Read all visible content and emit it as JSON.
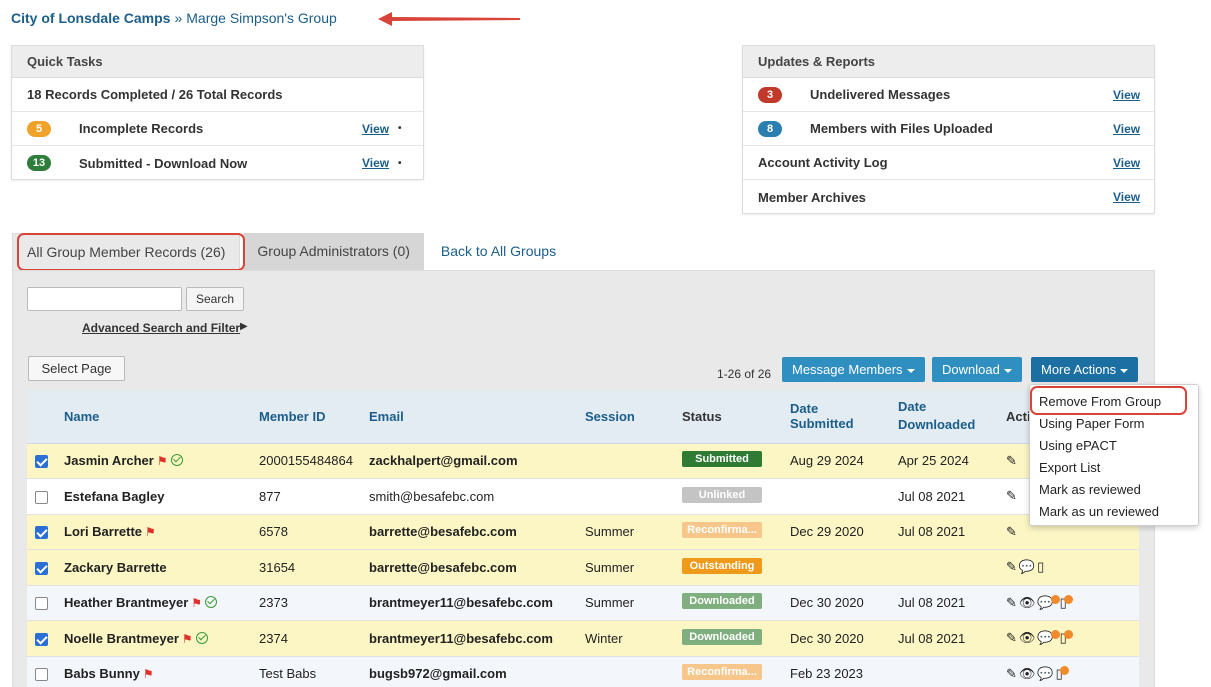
{
  "breadcrumb": {
    "org": "City of Lonsdale Camps",
    "sep": "»",
    "group": "Marge Simpson's Group"
  },
  "quick_tasks": {
    "title": "Quick Tasks",
    "summary": "18 Records Completed / 26 Total Records",
    "rows": [
      {
        "badge": "5",
        "label": "Incomplete Records",
        "link": "View"
      },
      {
        "badge": "13",
        "label": "Submitted - Download Now",
        "link": "View"
      }
    ]
  },
  "updates": {
    "title": "Updates & Reports",
    "rows": [
      {
        "badge": "3",
        "label": "Undelivered Messages",
        "link": "View"
      },
      {
        "badge": "8",
        "label": "Members with Files Uploaded",
        "link": "View"
      },
      {
        "badge": "",
        "label": "Account Activity Log",
        "link": "View"
      },
      {
        "badge": "",
        "label": "Member Archives",
        "link": "View"
      }
    ]
  },
  "tabs": {
    "members": "All Group Member Records (26)",
    "admins": "Group Administrators (0)",
    "back": "Back to All Groups"
  },
  "search": {
    "button": "Search",
    "advanced": "Advanced Search and Filter",
    "advanced_arrow": "▶"
  },
  "toolbar": {
    "select_page": "Select Page",
    "count": "1-26 of 26",
    "message": "Message Members",
    "download": "Download",
    "more": "More Actions"
  },
  "table": {
    "headers": {
      "name": "Name",
      "member_id": "Member ID",
      "email": "Email",
      "session": "Session",
      "status": "Status",
      "date_submitted": "Date Submitted",
      "date_downloaded": "Date Downloaded",
      "actions": "Actio"
    },
    "rows": [
      {
        "name": "Jasmin Archer",
        "id": "2000155484864",
        "email": "zackhalpert@gmail.com",
        "session": "",
        "status": "Submitted",
        "submitted": "Aug 29 2024",
        "downloaded": "Apr 25 2024"
      },
      {
        "name": "Estefana Bagley",
        "id": "877",
        "email": "smith@besafebc.com",
        "session": "",
        "status": "Unlinked",
        "submitted": "",
        "downloaded": "Jul 08 2021"
      },
      {
        "name": "Lori Barrette",
        "id": "6578",
        "email": "barrette@besafebc.com",
        "session": "Summer",
        "status": "Reconfirma...",
        "submitted": "Dec 29 2020",
        "downloaded": "Jul 08 2021"
      },
      {
        "name": "Zackary Barrette",
        "id": "31654",
        "email": "barrette@besafebc.com",
        "session": "Summer",
        "status": "Outstanding",
        "submitted": "",
        "downloaded": ""
      },
      {
        "name": "Heather Brantmeyer",
        "id": "2373",
        "email": "brantmeyer11@besafebc.com",
        "session": "Summer",
        "status": "Downloaded",
        "submitted": "Dec 30 2020",
        "downloaded": "Jul 08 2021"
      },
      {
        "name": "Noelle Brantmeyer",
        "id": "2374",
        "email": "brantmeyer11@besafebc.com",
        "session": "Winter",
        "status": "Downloaded",
        "submitted": "Dec 30 2020",
        "downloaded": "Jul 08 2021"
      },
      {
        "name": "Babs Bunny",
        "id": "Test Babs",
        "email": "bugsb972@gmail.com",
        "session": "",
        "status": "Reconfirma...",
        "submitted": "Feb 23 2023",
        "downloaded": ""
      }
    ]
  },
  "dropdown": {
    "items": [
      "Remove From Group",
      "Using Paper Form",
      "Using ePACT",
      "Export List",
      "Mark as reviewed",
      "Mark as un reviewed"
    ]
  },
  "colors": {
    "link": "#1b5e8a",
    "highlight": "#d9443a",
    "selected_row": "#fbf6c4"
  }
}
